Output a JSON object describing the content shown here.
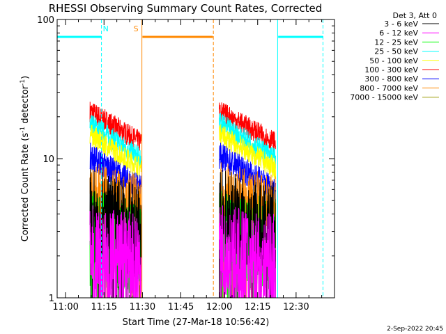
{
  "chart_data": {
    "type": "line",
    "title": "RHESSI Observing Summary Count Rates, Corrected",
    "xlabel": "Start Time (27-Mar-18 10:56:42)",
    "ylabel": "Corrected Count Rate (s⁻¹ detector⁻¹)",
    "ylabel_main": "Corrected Count Rate (s",
    "ylabel_sup1": "-1",
    "ylabel_mid": " detector",
    "ylabel_sup2": "-1",
    "ylabel_end": ")",
    "y_scale": "log",
    "ylim": [
      1,
      100
    ],
    "y_ticks": [
      {
        "value": 1,
        "label": "1"
      },
      {
        "value": 10,
        "label": "10"
      },
      {
        "value": 100,
        "label": "100"
      }
    ],
    "x_ticks": [
      {
        "minutes": 660,
        "label": "11:00"
      },
      {
        "minutes": 675,
        "label": "11:15"
      },
      {
        "minutes": 690,
        "label": "11:30"
      },
      {
        "minutes": 705,
        "label": "11:45"
      },
      {
        "minutes": 720,
        "label": "12:00"
      },
      {
        "minutes": 735,
        "label": "12:15"
      },
      {
        "minutes": 750,
        "label": "12:30"
      }
    ],
    "xlim_minutes": [
      656.7,
      765.0
    ],
    "legend_header": "Det 3, Att 0",
    "legend_position": "right",
    "series": [
      {
        "name": "3 - 6 keV",
        "color": "#000000"
      },
      {
        "name": "6 - 12 keV",
        "color": "#ff00ff"
      },
      {
        "name": "12 - 25 keV",
        "color": "#00ff00"
      },
      {
        "name": "25 - 50 keV",
        "color": "#00ffff"
      },
      {
        "name": "50 - 100 keV",
        "color": "#ffff00"
      },
      {
        "name": "100 - 300 keV",
        "color": "#ff0000"
      },
      {
        "name": "300 - 800 keV",
        "color": "#0000ff"
      },
      {
        "name": "800 - 7000 keV",
        "color": "#ff8800"
      },
      {
        "name": "7000 - 15000 keV",
        "color": "#999900"
      }
    ],
    "segments": [
      {
        "start": 669.5,
        "end": 689.5
      },
      {
        "start": 720.0,
        "end": 742.0
      }
    ],
    "band_levels": [
      {
        "color": "#ff0000",
        "start": 22,
        "end": 13,
        "spread": 0.08
      },
      {
        "color": "#00ffff",
        "start": 18,
        "end": 10,
        "spread": 0.08
      },
      {
        "color": "#ffff00",
        "start": 15,
        "end": 8.5,
        "spread": 0.08
      },
      {
        "color": "#0000ff",
        "start": 10.5,
        "end": 6,
        "spread": 0.1
      },
      {
        "color": "#ff8800",
        "start": 5,
        "end": 4,
        "spread": 0.28
      },
      {
        "color": "#000000",
        "start": 3.8,
        "end": 3.0,
        "spread": 0.35
      },
      {
        "color": "#00ff00",
        "start": 2.7,
        "end": 2.3,
        "spread": 0.35
      },
      {
        "color": "#ff00ff",
        "start": 2.1,
        "end": 1.8,
        "spread": 0.35
      }
    ],
    "markers": [
      {
        "label": "N",
        "color": "#00ffff",
        "bar_start": 656.7,
        "bar_end": 674.0,
        "line_start": 656.7,
        "line_end": 674.0,
        "start_dashed": false,
        "end_dashed": true
      },
      {
        "label": "S",
        "color": "#ff8800",
        "bar_start": 690.0,
        "bar_end": 717.5,
        "line_start": 689.8,
        "line_end": 717.7,
        "start_dashed": false,
        "end_dashed": true
      },
      {
        "label": "",
        "color": "#00ffff",
        "bar_start": 743.0,
        "bar_end": 760.5,
        "line_start": 742.8,
        "line_end": 760.5,
        "start_dashed": false,
        "end_dashed": true
      }
    ],
    "marker_bar_value": 75,
    "timestamp": "2-Sep-2022 20:45"
  }
}
